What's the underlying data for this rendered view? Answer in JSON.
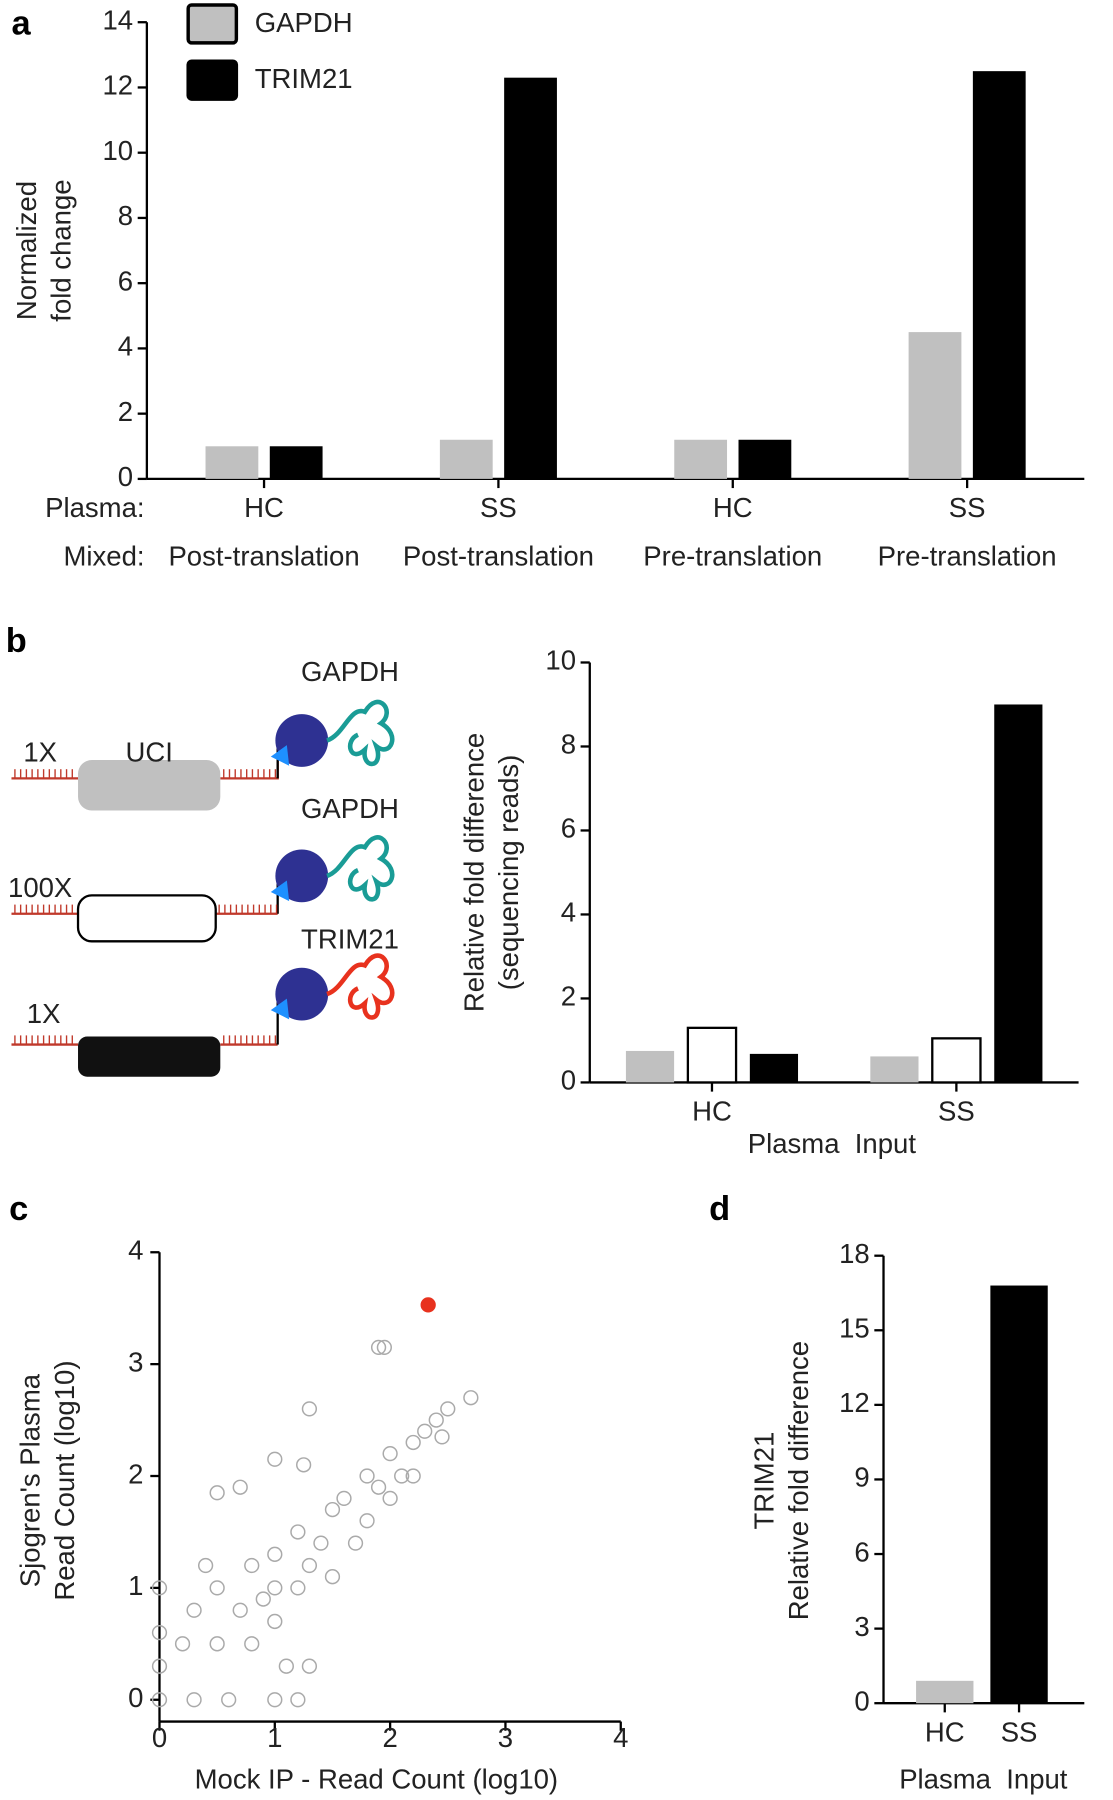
{
  "chart_data": [
    {
      "type": "bar",
      "panel_label": "a",
      "y_label": [
        "Normalized",
        "fold change"
      ],
      "category_row_labels": [
        "Plasma:",
        "Mixed:"
      ],
      "categories": [
        "HC",
        "SS",
        "HC",
        "SS"
      ],
      "categories2": [
        "Post-translation",
        "Post-translation",
        "Pre-translation",
        "Pre-translation"
      ],
      "series": [
        {
          "name": "GAPDH",
          "color": "#c0c0c0",
          "values": [
            1.0,
            1.2,
            1.2,
            4.5
          ]
        },
        {
          "name": "TRIM21",
          "color": "#000000",
          "values": [
            1.0,
            12.3,
            1.2,
            12.5
          ]
        }
      ],
      "ylim": [
        0,
        14
      ],
      "yticks": [
        0,
        2,
        4,
        6,
        8,
        10,
        12,
        14
      ]
    },
    {
      "type": "bar",
      "panel_label": "b",
      "y_label": [
        "Relative fold difference",
        "(sequencing reads)"
      ],
      "x_label": "Plasma  Input",
      "categories": [
        "HC",
        "SS"
      ],
      "series": [
        {
          "color": "#c0c0c0",
          "values": [
            0.75,
            0.62
          ]
        },
        {
          "color": "#ffffff",
          "values": [
            1.3,
            1.05
          ]
        },
        {
          "color": "#000000",
          "values": [
            0.68,
            9.0
          ]
        }
      ],
      "ylim": [
        0,
        10
      ],
      "yticks": [
        0,
        2,
        4,
        6,
        8,
        10
      ]
    },
    {
      "type": "scatter",
      "panel_label": "c",
      "y_label": [
        "Sjogren's Plasma",
        "Read Count (log10)"
      ],
      "x_label": "Mock IP - Read Count (log10)",
      "series": [
        {
          "color": "#aaaaaa",
          "filled": false,
          "x": [
            0,
            0.3,
            0.6,
            1,
            1.2,
            0,
            0,
            0,
            0.2,
            0.3,
            0.5,
            0.5,
            0.7,
            0.8,
            0.8,
            1,
            1,
            1,
            1.2,
            1.2,
            1.3,
            1.4,
            1.5,
            1.5,
            1.6,
            1.7,
            1.8,
            1.8,
            1.9,
            2,
            2,
            2.1,
            2.2,
            2.3,
            2.4,
            2.5,
            2.7,
            1.3,
            0.5,
            0.7,
            1,
            1.25,
            1.9,
            1.95,
            1.3,
            0.9,
            1.1,
            2.2,
            2.45,
            0.4
          ],
          "y": [
            0,
            0,
            0,
            0,
            0,
            0.3,
            0.6,
            1,
            0.5,
            0.8,
            1,
            0.5,
            0.8,
            1.2,
            0.5,
            1,
            1.3,
            0.7,
            1.5,
            1,
            0.3,
            1.4,
            1.7,
            1.1,
            1.8,
            1.4,
            2,
            1.6,
            1.9,
            2.2,
            1.8,
            2,
            2.3,
            2.4,
            2.5,
            2.6,
            2.7,
            2.6,
            1.85,
            1.9,
            2.15,
            2.1,
            3.15,
            3.15,
            1.2,
            0.9,
            0.3,
            2.0,
            2.35,
            1.2
          ]
        },
        {
          "color": "#e8321e",
          "filled": true,
          "x": [
            2.33
          ],
          "y": [
            3.53
          ]
        }
      ],
      "xlim": [
        0,
        4
      ],
      "xticks": [
        0,
        1,
        2,
        3,
        4
      ],
      "ylim": [
        0,
        4
      ],
      "yticks": [
        0,
        1,
        2,
        3,
        4
      ]
    },
    {
      "type": "bar",
      "panel_label": "d",
      "y_label": [
        "TRIM21",
        "Relative fold difference"
      ],
      "x_label": "Plasma  Input",
      "categories": [
        "HC",
        "SS"
      ],
      "values": [
        0.9,
        16.8
      ],
      "colors": [
        "#c0c0c0",
        "#000000"
      ],
      "ylim": [
        0,
        18
      ],
      "yticks": [
        0,
        3,
        6,
        9,
        12,
        15,
        18
      ]
    }
  ],
  "diagram": {
    "rows": [
      {
        "amount": "1X",
        "barcode": "UCI",
        "protein": "GAPDH"
      },
      {
        "amount": "100X",
        "protein": "GAPDH"
      },
      {
        "amount": "1X",
        "protein": "TRIM21"
      }
    ]
  }
}
